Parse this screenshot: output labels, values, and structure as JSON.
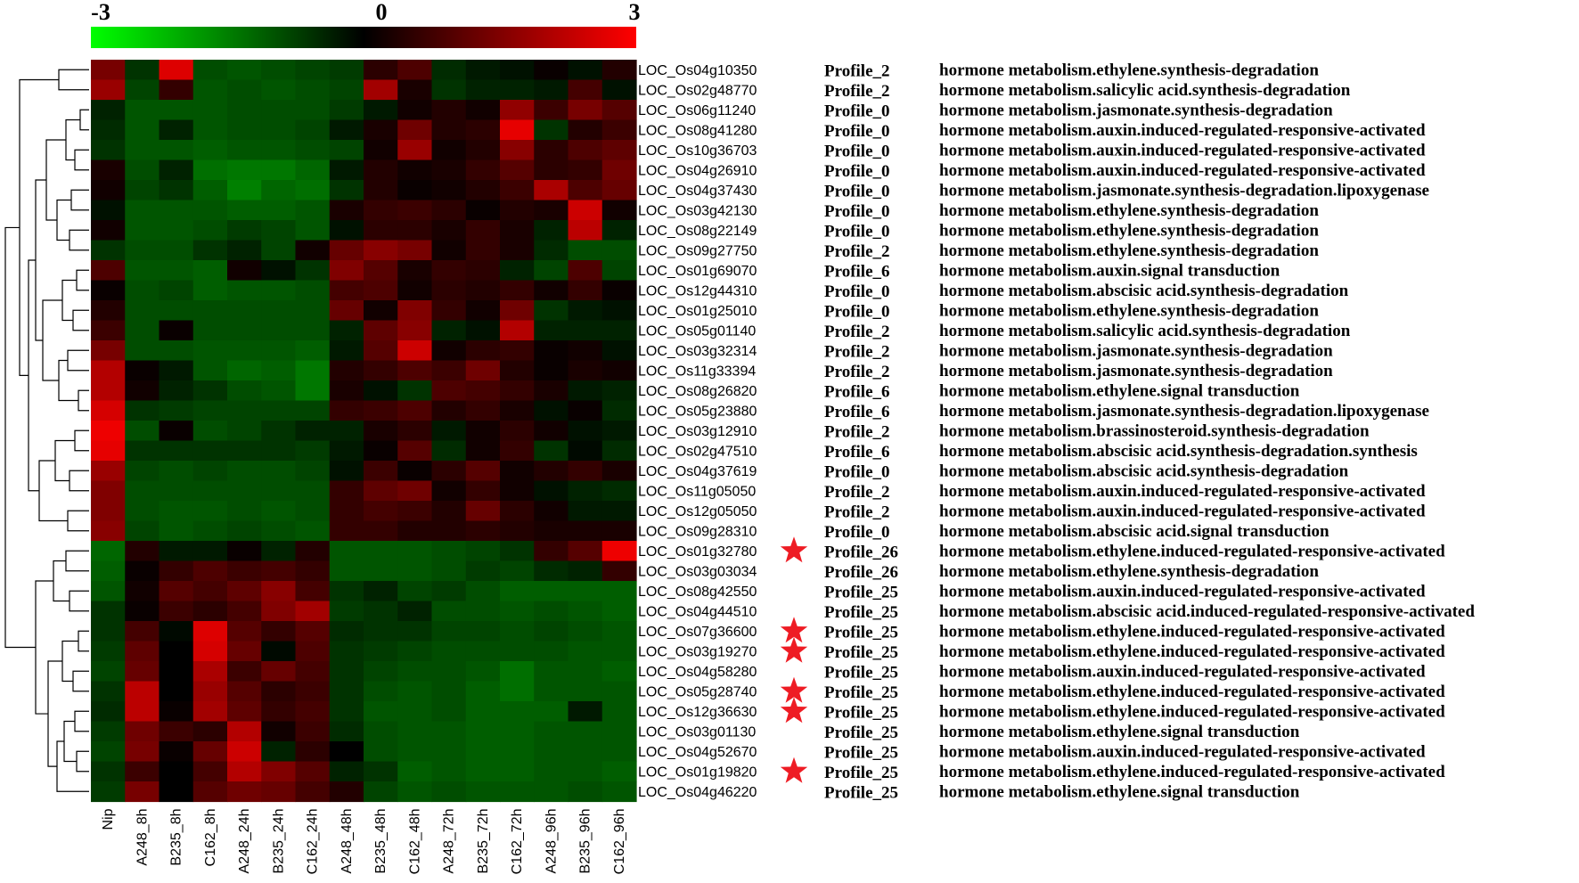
{
  "chart_data": {
    "type": "heatmap",
    "colorscale": {
      "min_label": "-3",
      "mid_label": "0",
      "max_label": "3",
      "min": -3,
      "mid": 0,
      "max": 3,
      "low_color": "#00ff00",
      "mid_color": "#000000",
      "high_color": "#ff0000"
    },
    "columns": [
      "Nip",
      "A248_8h",
      "B235_8h",
      "C162_8h",
      "A248_24h",
      "B235_24h",
      "C162_24h",
      "A248_48h",
      "B235_48h",
      "C162_48h",
      "A248_72h",
      "B235_72h",
      "C162_72h",
      "A248_96h",
      "B235_96h",
      "C162_96h"
    ],
    "rows": [
      {
        "gene": "LOC_Os04g10350",
        "profile": "Profile_2",
        "description": "hormone metabolism.ethylene.synthesis-degradation",
        "starred": false,
        "values": [
          1.4,
          -0.6,
          2.6,
          -0.9,
          -1.0,
          -0.9,
          -0.8,
          -0.7,
          0.5,
          0.9,
          -0.5,
          -0.3,
          -0.2,
          0.1,
          -0.2,
          0.4
        ]
      },
      {
        "gene": "LOC_Os02g48770",
        "profile": "Profile_2",
        "description": "hormone metabolism.salicylic acid.synthesis-degradation",
        "starred": false,
        "values": [
          1.8,
          -0.8,
          0.6,
          -1.0,
          -0.9,
          -1.0,
          -0.9,
          -0.8,
          1.9,
          0.3,
          -0.6,
          -0.4,
          -0.4,
          -0.3,
          0.8,
          -0.2
        ]
      },
      {
        "gene": "LOC_Os06g11240",
        "profile": "Profile_0",
        "description": "hormone metabolism.jasmonate.synthesis-degradation",
        "starred": false,
        "values": [
          -0.4,
          -1.0,
          -1.0,
          -1.0,
          -0.9,
          -0.9,
          -0.9,
          -0.7,
          -0.3,
          0.2,
          0.4,
          0.2,
          1.7,
          0.7,
          1.4,
          1.0
        ]
      },
      {
        "gene": "LOC_Os08g41280",
        "profile": "Profile_0",
        "description": "hormone metabolism.auxin.induced-regulated-responsive-activated",
        "starred": false,
        "values": [
          -0.5,
          -1.0,
          -0.4,
          -1.0,
          -0.9,
          -0.9,
          -0.8,
          -0.3,
          0.3,
          1.3,
          0.4,
          0.5,
          2.7,
          -0.6,
          0.4,
          0.7
        ]
      },
      {
        "gene": "LOC_Os10g36703",
        "profile": "Profile_0",
        "description": "hormone metabolism.auxin.induced-regulated-responsive-activated",
        "starred": false,
        "values": [
          -0.6,
          -1.0,
          -1.0,
          -1.1,
          -1.0,
          -1.0,
          -0.9,
          -0.8,
          0.2,
          1.8,
          0.2,
          0.4,
          1.6,
          0.5,
          0.9,
          1.1
        ]
      },
      {
        "gene": "LOC_Os04g26910",
        "profile": "Profile_0",
        "description": "hormone metabolism.auxin.induced-regulated-responsive-activated",
        "starred": false,
        "values": [
          0.3,
          -0.9,
          -0.4,
          -1.3,
          -1.4,
          -1.4,
          -1.2,
          -0.3,
          0.4,
          0.2,
          0.3,
          0.6,
          1.0,
          0.5,
          0.6,
          1.3
        ]
      },
      {
        "gene": "LOC_Os04g37430",
        "profile": "Profile_0",
        "description": "hormone metabolism.jasmonate.synthesis-degradation.lipoxygenase",
        "starred": false,
        "values": [
          0.2,
          -0.8,
          -0.6,
          -1.1,
          -1.5,
          -1.2,
          -1.3,
          -0.6,
          0.4,
          0.1,
          0.2,
          0.4,
          0.7,
          2.0,
          0.9,
          1.2
        ]
      },
      {
        "gene": "LOC_Os03g42130",
        "profile": "Profile_0",
        "description": "hormone metabolism.ethylene.synthesis-degradation",
        "starred": false,
        "values": [
          -0.2,
          -1.0,
          -1.0,
          -1.0,
          -1.1,
          -1.1,
          -1.0,
          0.3,
          0.6,
          0.7,
          0.5,
          0.1,
          0.4,
          0.3,
          2.4,
          0.2
        ]
      },
      {
        "gene": "LOC_Os08g22149",
        "profile": "Profile_0",
        "description": "hormone metabolism.ethylene.synthesis-degradation",
        "starred": false,
        "values": [
          0.2,
          -1.0,
          -1.0,
          -0.9,
          -0.7,
          -0.8,
          -1.0,
          -0.2,
          0.5,
          0.5,
          0.3,
          0.6,
          0.3,
          -0.4,
          2.2,
          -0.4
        ]
      },
      {
        "gene": "LOC_Os09g27750",
        "profile": "Profile_2",
        "description": "hormone metabolism.ethylene.synthesis-degradation",
        "starred": false,
        "values": [
          -0.6,
          -0.9,
          -0.9,
          -0.6,
          -0.4,
          -0.8,
          0.2,
          1.2,
          1.6,
          1.4,
          0.2,
          0.6,
          0.3,
          -0.5,
          -0.9,
          -0.9
        ]
      },
      {
        "gene": "LOC_Os01g69070",
        "profile": "Profile_6",
        "description": "hormone metabolism.auxin.signal transduction",
        "starred": false,
        "values": [
          0.9,
          -1.0,
          -1.0,
          -1.1,
          0.2,
          -0.2,
          -0.6,
          1.5,
          1.0,
          0.3,
          0.6,
          0.5,
          -0.4,
          -0.8,
          0.9,
          -0.8
        ]
      },
      {
        "gene": "LOC_Os12g44310",
        "profile": "Profile_0",
        "description": "hormone metabolism.abscisic acid.synthesis-degradation",
        "starred": false,
        "values": [
          0.1,
          -0.9,
          -0.8,
          -1.1,
          -1.0,
          -1.0,
          -0.9,
          0.8,
          0.9,
          0.2,
          0.5,
          0.4,
          0.6,
          0.2,
          0.6,
          0.1
        ]
      },
      {
        "gene": "LOC_Os01g25010",
        "profile": "Profile_0",
        "description": "hormone metabolism.ethylene.synthesis-degradation",
        "starred": false,
        "values": [
          0.4,
          -0.9,
          -0.9,
          -0.9,
          -0.9,
          -0.9,
          -0.9,
          1.2,
          0.2,
          1.5,
          0.6,
          0.2,
          1.3,
          -0.6,
          -0.3,
          -0.2
        ]
      },
      {
        "gene": "LOC_Os05g01140",
        "profile": "Profile_2",
        "description": "hormone metabolism.salicylic acid.synthesis-degradation",
        "starred": false,
        "values": [
          0.7,
          -0.9,
          0.1,
          -0.9,
          -0.9,
          -0.9,
          -0.9,
          -0.4,
          1.1,
          1.6,
          -0.4,
          -0.2,
          2.1,
          -0.4,
          -0.4,
          -0.4
        ]
      },
      {
        "gene": "LOC_Os03g32314",
        "profile": "Profile_2",
        "description": "hormone metabolism.jasmonate.synthesis-degradation",
        "starred": false,
        "values": [
          1.4,
          -0.9,
          -0.9,
          -1.0,
          -1.0,
          -1.0,
          -1.1,
          -0.3,
          1.0,
          2.4,
          0.2,
          0.5,
          0.6,
          0.1,
          0.2,
          -0.2
        ]
      },
      {
        "gene": "LOC_Os11g33394",
        "profile": "Profile_2",
        "description": "hormone metabolism.jasmonate.synthesis-degradation",
        "starred": false,
        "values": [
          2.1,
          0.1,
          -0.3,
          -1.0,
          -1.2,
          -1.1,
          -1.4,
          0.4,
          0.6,
          0.9,
          0.7,
          1.3,
          0.4,
          0.1,
          0.3,
          0.2
        ]
      },
      {
        "gene": "LOC_Os08g26820",
        "profile": "Profile_6",
        "description": "hormone metabolism.ethylene.signal transduction",
        "starred": false,
        "values": [
          2.1,
          0.2,
          -0.4,
          -0.6,
          -0.9,
          -1.0,
          -1.4,
          0.3,
          -0.2,
          -0.6,
          0.9,
          0.8,
          0.6,
          0.3,
          -0.3,
          -0.4
        ]
      },
      {
        "gene": "LOC_Os05g23880",
        "profile": "Profile_6",
        "description": "hormone metabolism.jasmonate.synthesis-degradation.lipoxygenase",
        "starred": false,
        "values": [
          2.5,
          -0.6,
          -0.7,
          -0.8,
          -0.8,
          -0.8,
          -0.8,
          0.6,
          0.7,
          0.9,
          0.4,
          0.6,
          0.3,
          -0.2,
          0.1,
          -0.5
        ]
      },
      {
        "gene": "LOC_Os03g12910",
        "profile": "Profile_2",
        "description": "hormone metabolism.brassinosteroid.synthesis-degradation",
        "starred": false,
        "values": [
          2.8,
          -0.9,
          0.1,
          -0.9,
          -0.8,
          -0.6,
          -0.4,
          -0.4,
          0.3,
          0.5,
          -0.3,
          0.2,
          0.5,
          0.2,
          -0.2,
          -0.3
        ]
      },
      {
        "gene": "LOC_Os02g47510",
        "profile": "Profile_6",
        "description": "hormone metabolism.abscisic acid.synthesis-degradation.synthesis",
        "starred": false,
        "values": [
          2.7,
          -0.6,
          -0.6,
          -0.6,
          -0.6,
          -0.6,
          -0.7,
          -0.3,
          0.1,
          1.0,
          -0.5,
          0.2,
          0.6,
          -0.6,
          -0.1,
          -0.5
        ]
      },
      {
        "gene": "LOC_Os04g37619",
        "profile": "Profile_0",
        "description": "hormone metabolism.abscisic acid.synthesis-degradation",
        "starred": false,
        "values": [
          1.8,
          -0.8,
          -0.9,
          -0.8,
          -0.9,
          -0.9,
          -0.8,
          -0.2,
          0.7,
          0.1,
          0.5,
          1.0,
          0.2,
          0.4,
          0.6,
          0.3
        ]
      },
      {
        "gene": "LOC_Os11g05050",
        "profile": "Profile_2",
        "description": "hormone metabolism.auxin.induced-regulated-responsive-activated",
        "starred": false,
        "values": [
          1.5,
          -0.9,
          -0.9,
          -0.9,
          -0.9,
          -0.9,
          -0.9,
          0.6,
          1.1,
          1.3,
          0.2,
          0.6,
          0.2,
          -0.2,
          -0.4,
          -0.5
        ]
      },
      {
        "gene": "LOC_Os12g05050",
        "profile": "Profile_2",
        "description": "hormone metabolism.auxin.induced-regulated-responsive-activated",
        "starred": false,
        "values": [
          1.5,
          -0.9,
          -1.0,
          -1.0,
          -0.9,
          -1.0,
          -0.9,
          0.6,
          0.8,
          0.7,
          0.4,
          1.2,
          0.5,
          0.2,
          -0.3,
          -0.3
        ]
      },
      {
        "gene": "LOC_Os09g28310",
        "profile": "Profile_0",
        "description": "hormone metabolism.abscisic acid.signal transduction",
        "starred": false,
        "values": [
          1.6,
          -0.8,
          -1.0,
          -0.9,
          -0.8,
          -0.9,
          -1.0,
          0.6,
          0.6,
          0.4,
          0.4,
          0.5,
          0.4,
          0.3,
          0.3,
          0.3
        ]
      },
      {
        "gene": "LOC_Os01g32780",
        "profile": "Profile_26",
        "description": "hormone metabolism.ethylene.induced-regulated-responsive-activated",
        "starred": true,
        "values": [
          -1.2,
          0.4,
          -0.3,
          -0.3,
          0.1,
          -0.4,
          0.4,
          -1.0,
          -1.0,
          -1.0,
          -0.9,
          -0.8,
          -0.6,
          0.6,
          1.0,
          2.8
        ]
      },
      {
        "gene": "LOC_Os03g03034",
        "profile": "Profile_26",
        "description": "hormone metabolism.ethylene.synthesis-degradation",
        "starred": false,
        "values": [
          -1.1,
          0.1,
          0.6,
          0.9,
          0.7,
          0.8,
          0.6,
          -1.0,
          -1.0,
          -1.0,
          -0.9,
          -0.7,
          -0.8,
          -0.5,
          -0.4,
          0.6
        ]
      },
      {
        "gene": "LOC_Os08g42550",
        "profile": "Profile_25",
        "description": "hormone metabolism.auxin.induced-regulated-responsive-activated",
        "starred": false,
        "values": [
          -1.0,
          0.2,
          1.0,
          0.8,
          1.1,
          1.6,
          0.8,
          -0.6,
          -0.4,
          -0.8,
          -0.7,
          -0.9,
          -1.1,
          -1.1,
          -1.1,
          -1.1
        ]
      },
      {
        "gene": "LOC_Os04g44510",
        "profile": "Profile_25",
        "description": "hormone metabolism.abscisic acid.induced-regulated-responsive-activated",
        "starred": false,
        "values": [
          -0.6,
          0.1,
          0.7,
          0.5,
          0.8,
          1.5,
          1.9,
          -0.7,
          -0.6,
          -0.4,
          -0.9,
          -0.9,
          -1.0,
          -0.9,
          -1.0,
          -1.1
        ]
      },
      {
        "gene": "LOC_Os07g36600",
        "profile": "Profile_25",
        "description": "hormone metabolism.ethylene.induced-regulated-responsive-activated",
        "starred": true,
        "values": [
          -0.6,
          0.8,
          -0.1,
          2.6,
          1.0,
          0.6,
          1.0,
          -0.5,
          -0.6,
          -0.6,
          -0.8,
          -0.8,
          -0.9,
          -0.8,
          -0.9,
          -1.0
        ]
      },
      {
        "gene": "LOC_Os03g19270",
        "profile": "Profile_25",
        "description": "hormone metabolism.ethylene.induced-regulated-responsive-activated",
        "starred": true,
        "values": [
          -0.7,
          1.1,
          0.0,
          2.5,
          1.2,
          -0.1,
          0.9,
          -0.6,
          -0.7,
          -0.8,
          -0.9,
          -0.9,
          -0.9,
          -0.9,
          -1.0,
          -1.0
        ]
      },
      {
        "gene": "LOC_Os04g58280",
        "profile": "Profile_25",
        "description": "hormone metabolism.auxin.induced-regulated-responsive-activated",
        "starred": false,
        "values": [
          -0.8,
          1.2,
          0.0,
          2.0,
          0.7,
          1.2,
          0.8,
          -0.6,
          -0.8,
          -0.9,
          -0.9,
          -1.0,
          -1.3,
          -1.0,
          -1.0,
          -1.1
        ]
      },
      {
        "gene": "LOC_Os05g28740",
        "profile": "Profile_25",
        "description": "hormone metabolism.ethylene.induced-regulated-responsive-activated",
        "starred": true,
        "values": [
          -0.6,
          2.2,
          0.0,
          1.8,
          1.0,
          0.5,
          0.7,
          -0.6,
          -0.9,
          -1.0,
          -0.9,
          -1.1,
          -1.3,
          -1.0,
          -1.0,
          -1.0
        ]
      },
      {
        "gene": "LOC_Os12g36630",
        "profile": "Profile_25",
        "description": "hormone metabolism.ethylene.induced-regulated-responsive-activated",
        "starred": true,
        "values": [
          -0.5,
          2.2,
          0.1,
          1.9,
          1.1,
          0.6,
          0.8,
          -0.6,
          -1.0,
          -1.0,
          -0.9,
          -1.1,
          -1.1,
          -1.1,
          -0.3,
          -1.0
        ]
      },
      {
        "gene": "LOC_Os03g01130",
        "profile": "Profile_25",
        "description": "hormone metabolism.ethylene.signal transduction",
        "starred": false,
        "values": [
          -0.7,
          1.3,
          0.7,
          0.5,
          2.1,
          0.2,
          0.7,
          -0.5,
          -0.9,
          -1.0,
          -1.0,
          -1.1,
          -1.1,
          -1.0,
          -1.0,
          -1.0
        ]
      },
      {
        "gene": "LOC_Os04g52670",
        "profile": "Profile_25",
        "description": "hormone metabolism.auxin.induced-regulated-responsive-activated",
        "starred": false,
        "values": [
          -0.8,
          1.4,
          0.1,
          1.2,
          2.4,
          -0.4,
          0.5,
          0.0,
          -0.9,
          -1.0,
          -1.0,
          -1.1,
          -1.1,
          -1.0,
          -1.0,
          -1.0
        ]
      },
      {
        "gene": "LOC_Os01g19820",
        "profile": "Profile_25",
        "description": "hormone metabolism.ethylene.induced-regulated-responsive-activated",
        "starred": true,
        "values": [
          -0.6,
          0.7,
          0.0,
          0.8,
          2.1,
          1.5,
          1.0,
          -0.4,
          -0.6,
          -1.1,
          -1.0,
          -1.1,
          -1.1,
          -1.0,
          -1.0,
          -1.1
        ]
      },
      {
        "gene": "LOC_Os04g46220",
        "profile": "Profile_25",
        "description": "hormone metabolism.ethylene.signal transduction",
        "starred": false,
        "values": [
          -0.7,
          1.4,
          0.0,
          1.0,
          1.3,
          1.2,
          0.8,
          0.4,
          -0.8,
          -1.0,
          -0.9,
          -1.0,
          -1.0,
          -1.0,
          -0.9,
          -1.0
        ]
      }
    ],
    "dendrogram": true,
    "star_color": "#ee1c24"
  }
}
